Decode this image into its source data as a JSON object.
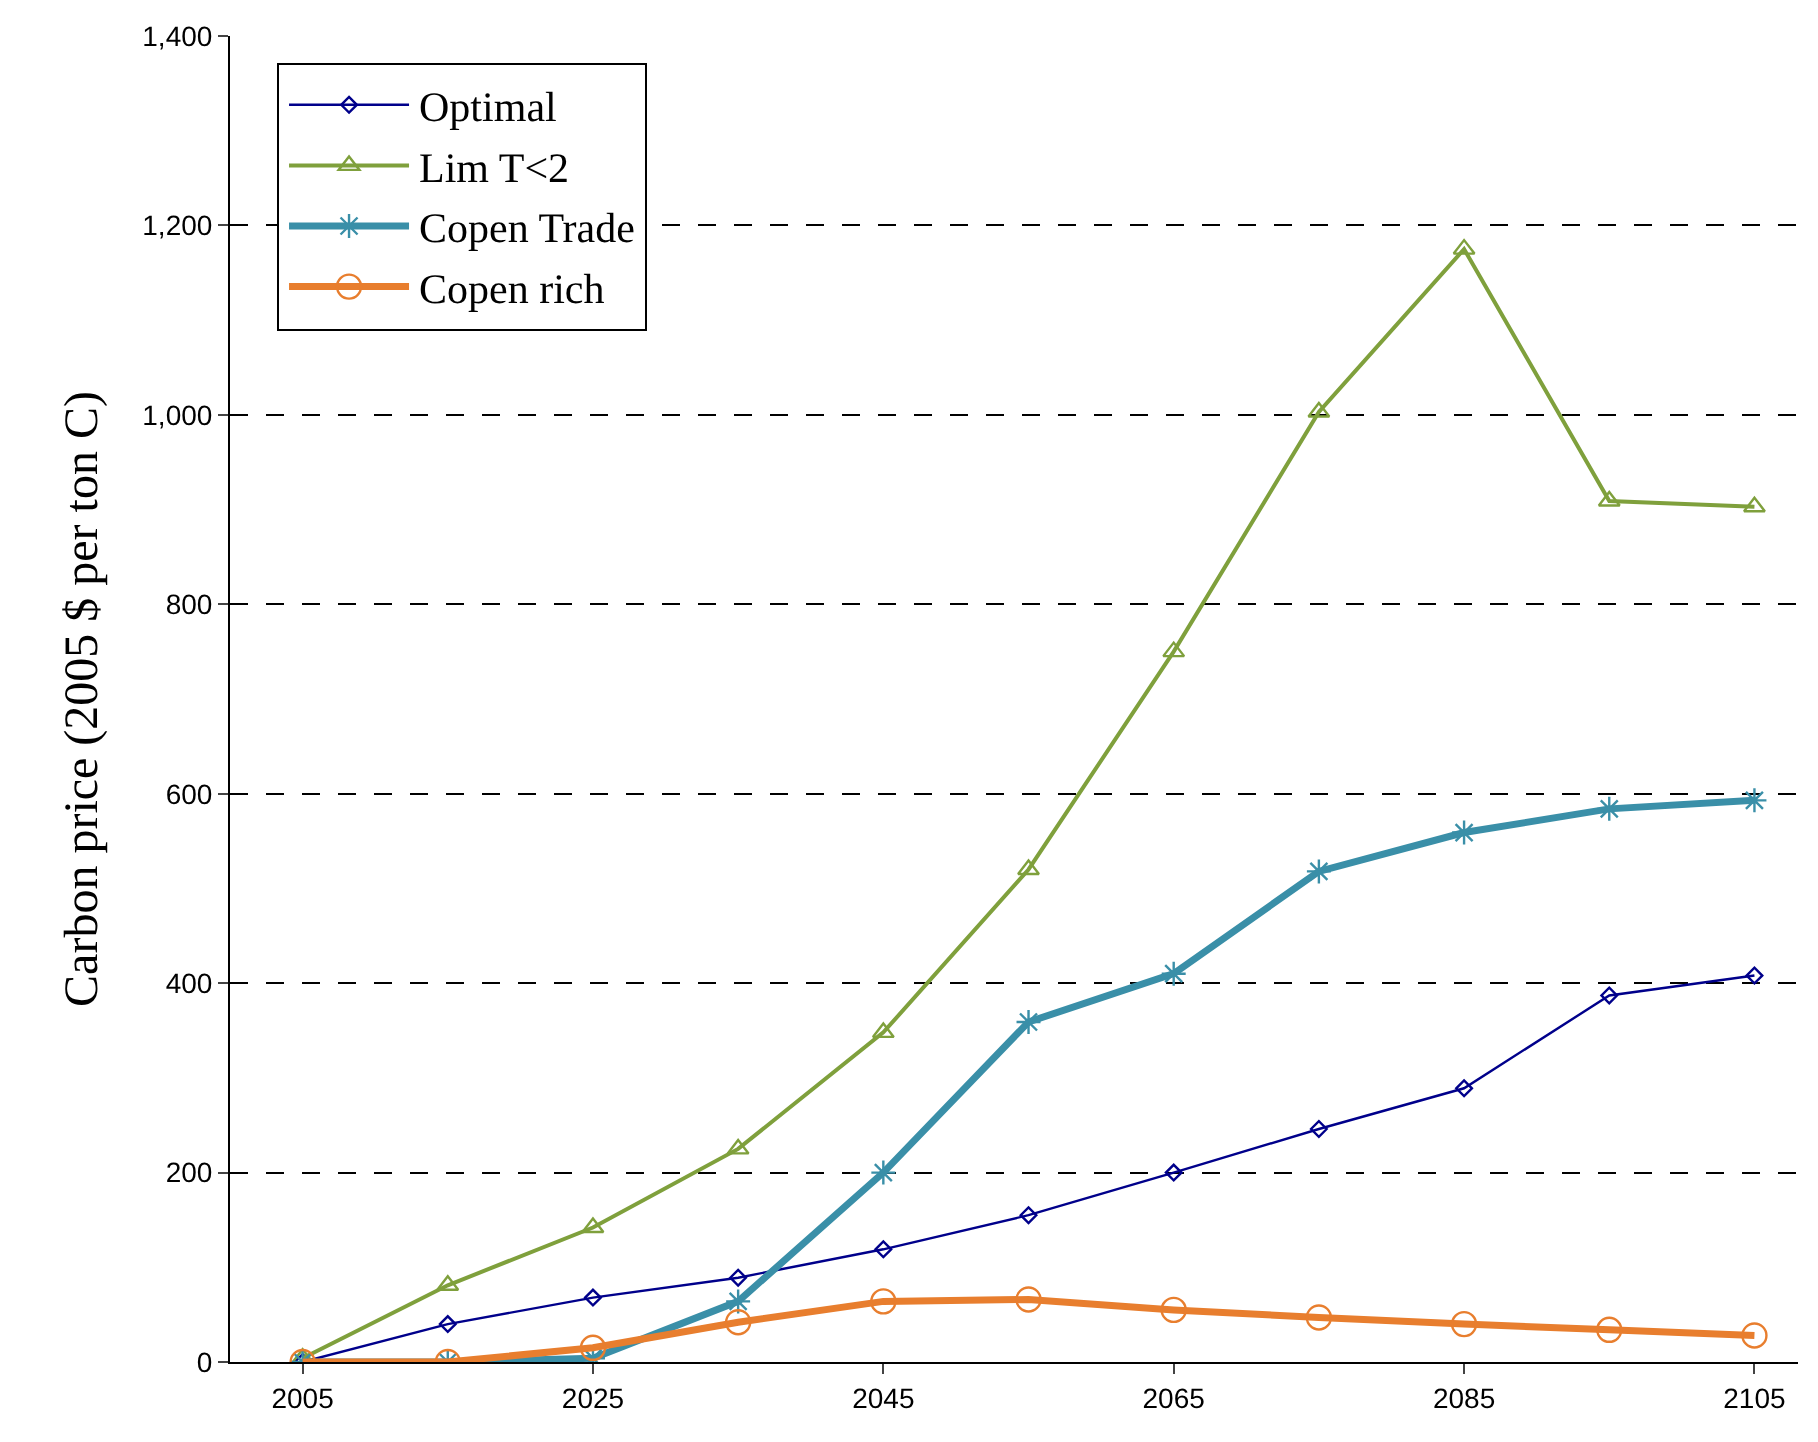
{
  "chart_data": {
    "type": "line",
    "ylabel": "Carbon price (2005 $ per ton C)",
    "x": [
      2005,
      2015,
      2025,
      2035,
      2045,
      2055,
      2065,
      2075,
      2085,
      2095,
      2105
    ],
    "series": [
      {
        "name": "Optimal",
        "color": "#00008b",
        "marker": "diamond",
        "values": [
          0,
          40,
          68,
          89,
          119,
          155,
          200,
          246,
          289,
          387,
          408
        ]
      },
      {
        "name": "Lim T<2",
        "color": "#7fa03c",
        "marker": "triangle",
        "values": [
          4,
          81,
          142,
          225,
          348,
          520,
          750,
          1003,
          1175,
          909,
          903
        ]
      },
      {
        "name": "Copen Trade",
        "color": "#3a8fa8",
        "marker": "cross",
        "values": [
          0,
          0,
          4,
          64,
          200,
          359,
          410,
          518,
          559,
          584,
          593
        ]
      },
      {
        "name": "Copen rich",
        "color": "#e87e2e",
        "marker": "circle",
        "values": [
          0,
          0,
          15,
          42,
          64,
          66,
          55,
          47,
          40,
          34,
          28
        ]
      }
    ],
    "xlim": [
      2000,
      2108
    ],
    "xticks": [
      2005,
      2025,
      2045,
      2065,
      2085,
      2105
    ],
    "ylim": [
      0,
      1400
    ],
    "yticks": [
      {
        "value": 0,
        "label": "0"
      },
      {
        "value": 200,
        "label": "200"
      },
      {
        "value": 400,
        "label": "400"
      },
      {
        "value": 600,
        "label": "600"
      },
      {
        "value": 800,
        "label": "800"
      },
      {
        "value": 1000,
        "label": "1,000"
      },
      {
        "value": 1200,
        "label": "1,200"
      },
      {
        "value": 1400,
        "label": "1,400"
      }
    ],
    "grid": "y",
    "legend": "top left",
    "line_style": "solid"
  }
}
